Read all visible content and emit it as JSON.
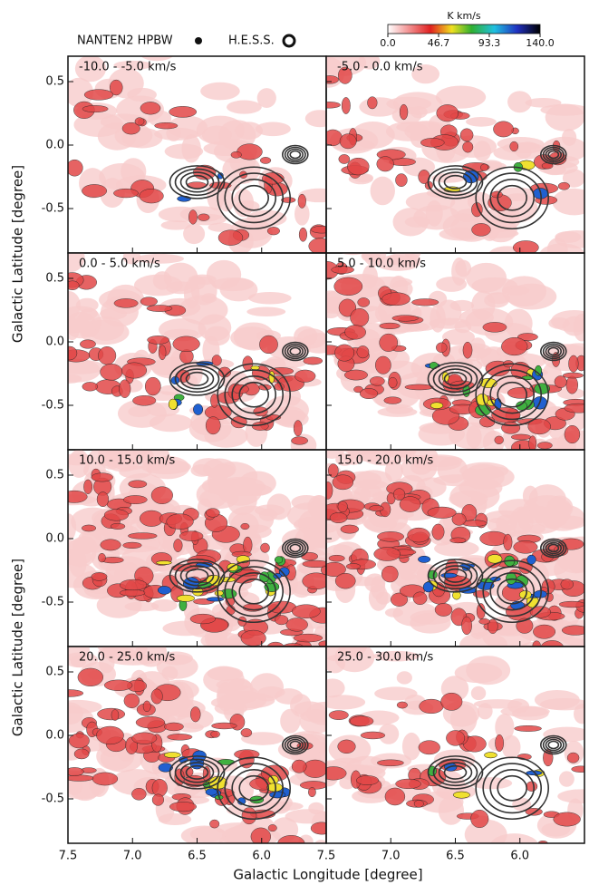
{
  "chart_data": {
    "type": "map",
    "xlabel": "Galactic Longitude [degree]",
    "ylabel": "Galactic Latitude [degree]",
    "xlim": [
      7.5,
      5.5
    ],
    "xticks": [
      7.5,
      {
        "value": 7,
        "label": "7.0"
      },
      6.5,
      {
        "value": 6,
        "label": "6.0"
      }
    ],
    "ylim": [
      -0.85,
      0.7
    ],
    "yticks": [
      0.5,
      {
        "value": 0,
        "label": "0.0"
      },
      -0.5
    ],
    "legend": [
      "NANTEN2 HPBW",
      "H.E.S.S."
    ],
    "colorbar": {
      "label": "K km/s",
      "lim": [
        0,
        140
      ],
      "ticks": [
        {
          "value": 0,
          "label": "0.0"
        },
        46.7,
        93.3,
        {
          "value": 140,
          "label": "140.0"
        }
      ]
    },
    "panels": [
      {
        "title": "-10.0 - -5.0 km/s"
      },
      {
        "title": "-5.0 - 0.0 km/s"
      },
      {
        "title": "0.0 - 5.0 km/s"
      },
      {
        "title": "5.0 - 10.0 km/s"
      },
      {
        "title": "10.0 - 15.0 km/s"
      },
      {
        "title": "15.0 - 20.0 km/s"
      },
      {
        "title": "20.0 - 25.0 km/s"
      },
      {
        "title": "25.0 - 30.0 km/s"
      }
    ]
  }
}
